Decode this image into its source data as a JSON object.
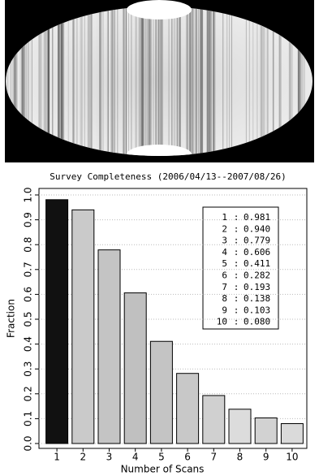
{
  "chart_data": {
    "type": "bar",
    "title": "Survey Completeness (2006/04/13--2007/08/26)",
    "x_label": "Number of Scans",
    "y_label": "Fraction",
    "categories": [
      "1",
      "2",
      "3",
      "4",
      "5",
      "6",
      "7",
      "8",
      "9",
      "10"
    ],
    "values": [
      0.981,
      0.94,
      0.779,
      0.606,
      0.411,
      0.282,
      0.193,
      0.138,
      0.103,
      0.08
    ],
    "value_labels": [
      "0.981",
      "0.940",
      "0.779",
      "0.606",
      "0.411",
      "0.282",
      "0.193",
      "0.138",
      "0.103",
      "0.080"
    ],
    "legend_separator": ":",
    "colors": [
      "#111111",
      "#cacaca",
      "#c4c4c4",
      "#c0c0c0",
      "#c4c4c4",
      "#c8c8c8",
      "#d0d0d0",
      "#dcdcdc",
      "#d2d2d2",
      "#dadada"
    ],
    "ylim": [
      0,
      1
    ],
    "yticks": [
      {
        "value": 0,
        "label": "0.0"
      },
      0.1,
      0.2,
      0.3,
      0.4,
      0.5,
      0.6,
      0.7,
      0.8,
      0.9,
      {
        "value": 1,
        "label": "1.0"
      }
    ],
    "grid": true
  }
}
